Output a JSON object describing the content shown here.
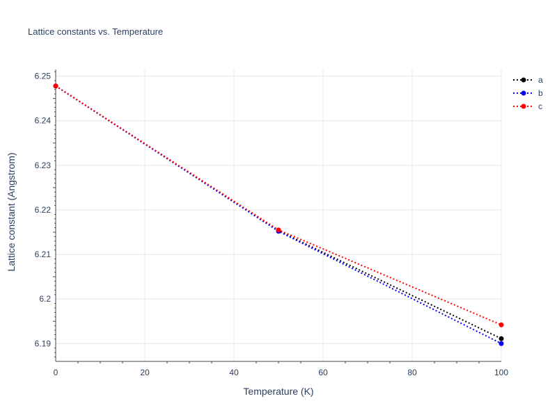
{
  "chart_data": {
    "type": "line",
    "title": "Lattice constants vs. Temperature",
    "xlabel": "Temperature (K)",
    "ylabel": "Lattice constant (Angstrom)",
    "xlim": [
      0,
      100
    ],
    "ylim": [
      6.186,
      6.2515
    ],
    "x_ticks": [
      0,
      20,
      40,
      60,
      80,
      100
    ],
    "y_ticks": [
      6.19,
      6.2,
      6.21,
      6.22,
      6.23,
      6.24,
      6.25
    ],
    "y_tick_labels": [
      "6.19",
      "6.2",
      "6.21",
      "6.22",
      "6.23",
      "6.24",
      "6.25"
    ],
    "grid": true,
    "legend_position": "top-right",
    "series": [
      {
        "name": "a",
        "color": "#000000",
        "x": [
          0,
          50,
          100
        ],
        "y": [
          6.2478,
          6.2153,
          6.1911
        ]
      },
      {
        "name": "b",
        "color": "#0000ff",
        "x": [
          0,
          50,
          100
        ],
        "y": [
          6.2478,
          6.2152,
          6.19
        ]
      },
      {
        "name": "c",
        "color": "#ff0000",
        "x": [
          0,
          50,
          100
        ],
        "y": [
          6.2478,
          6.2155,
          6.1942
        ]
      }
    ]
  }
}
